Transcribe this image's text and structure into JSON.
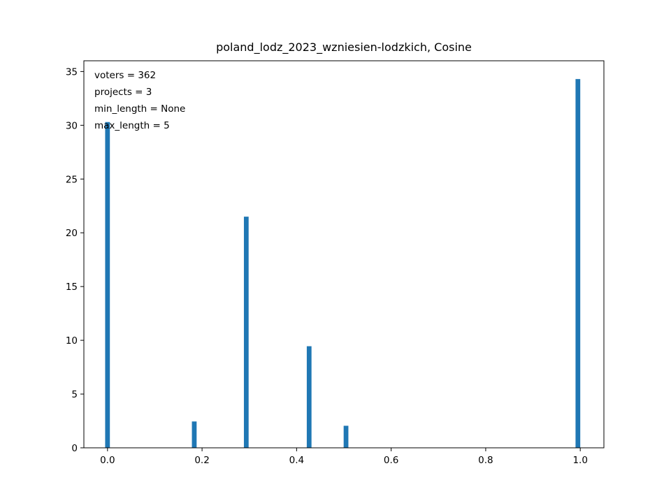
{
  "chart_data": {
    "type": "bar",
    "title": "poland_lodz_2023_wzniesien-lodzkich, Cosine",
    "xlabel": "",
    "ylabel": "",
    "xlim": [
      -0.05,
      1.05
    ],
    "ylim": [
      0,
      36
    ],
    "x_ticks": [
      0.0,
      0.2,
      0.4,
      0.6,
      0.8,
      1.0
    ],
    "x_tick_labels": [
      "0.0",
      "0.2",
      "0.4",
      "0.6",
      "0.8",
      "1.0"
    ],
    "y_ticks": [
      0,
      5,
      10,
      15,
      20,
      25,
      30,
      35
    ],
    "y_tick_labels": [
      "0",
      "5",
      "10",
      "15",
      "20",
      "25",
      "30",
      "35"
    ],
    "bar_width": 0.01,
    "color": "#1f77b4",
    "grid": false,
    "bars": [
      {
        "x": 0.0,
        "value": 30.3
      },
      {
        "x": 0.1835,
        "value": 2.45
      },
      {
        "x": 0.2935,
        "value": 21.5
      },
      {
        "x": 0.4265,
        "value": 9.45
      },
      {
        "x": 0.5045,
        "value": 2.05
      },
      {
        "x": 0.995,
        "value": 34.3
      }
    ],
    "annotations": [
      "voters = 362",
      "projects = 3",
      "min_length = None",
      "max_length = 5"
    ]
  }
}
